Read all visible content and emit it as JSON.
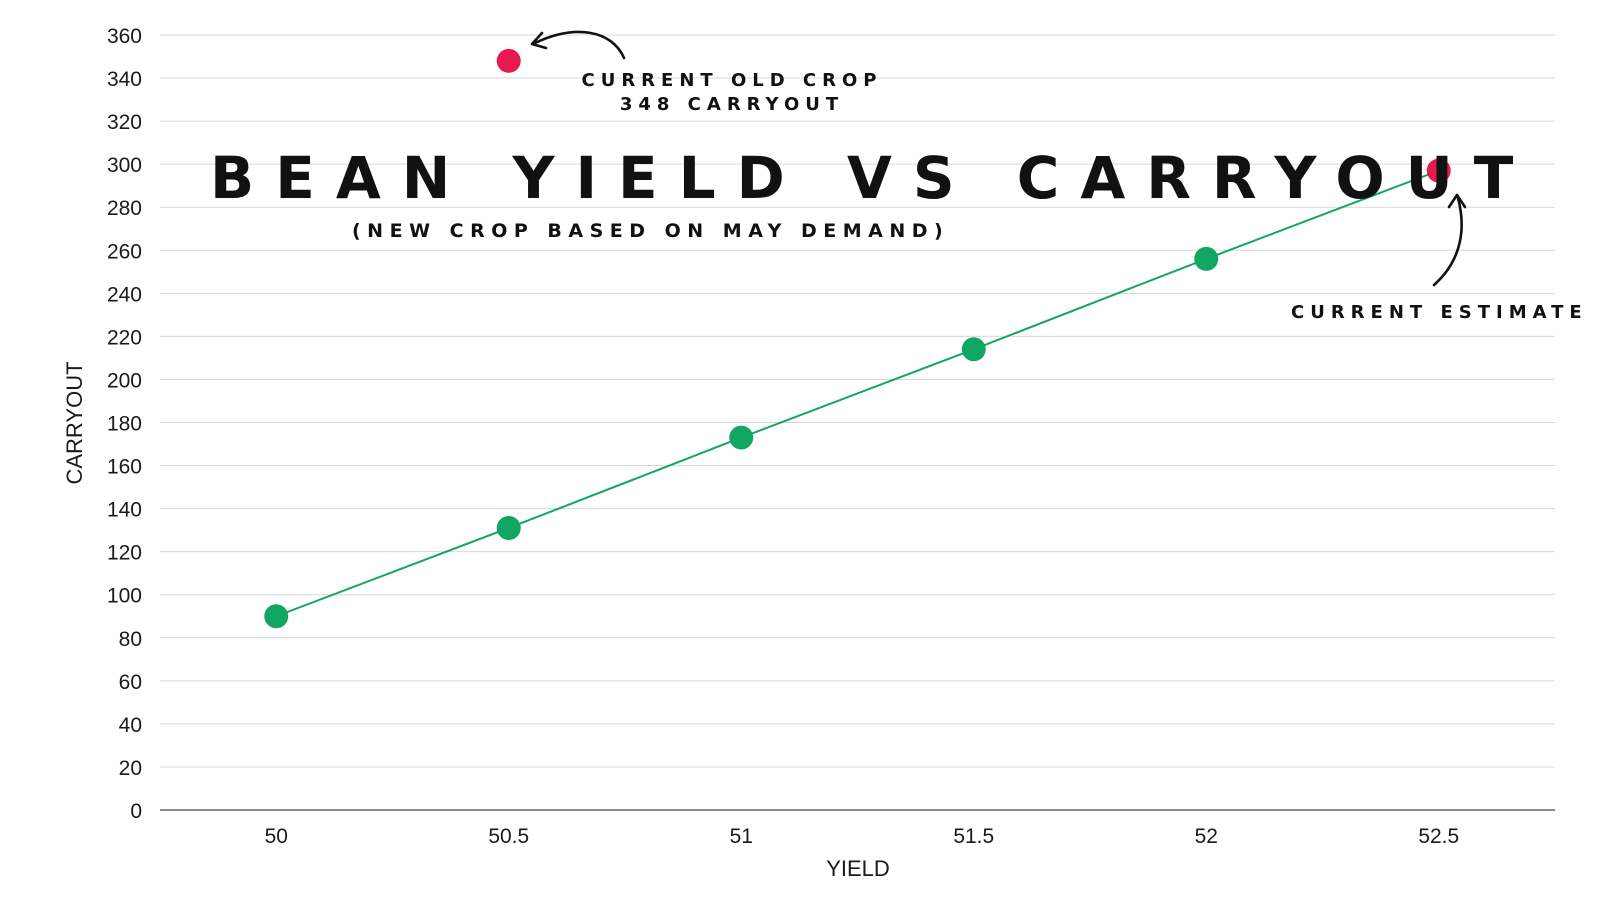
{
  "chart_data": {
    "type": "line",
    "title": "BEAN YIELD VS CARRYOUT",
    "subtitle": "(NEW CROP BASED ON MAY DEMAND)",
    "xlabel": "YIELD",
    "ylabel": "CARRYOUT",
    "categories": [
      "50",
      "50.5",
      "51",
      "51.5",
      "52",
      "52.5"
    ],
    "ylim": [
      0,
      360
    ],
    "ystep": 20,
    "yticks": [
      "0",
      "20",
      "40",
      "60",
      "80",
      "100",
      "120",
      "140",
      "160",
      "180",
      "200",
      "220",
      "240",
      "260",
      "280",
      "300",
      "320",
      "340",
      "360"
    ],
    "grid": true,
    "series": [
      {
        "name": "Carryout",
        "color": "#12a663",
        "points": [
          {
            "x": "50",
            "y": 90
          },
          {
            "x": "50.5",
            "y": 131
          },
          {
            "x": "51",
            "y": 173
          },
          {
            "x": "51.5",
            "y": 214
          },
          {
            "x": "52",
            "y": 256
          }
        ]
      }
    ],
    "highlights": [
      {
        "name": "current-old-crop",
        "x": "50.5",
        "y": 348,
        "color": "#e8194f"
      },
      {
        "name": "current-estimate",
        "x": "52.5",
        "y": 297,
        "color": "#e8194f"
      }
    ],
    "annotations": {
      "old_crop_line1": "CURRENT OLD CROP",
      "old_crop_line2": "348 CARRYOUT",
      "current_estimate": "CURRENT ESTIMATE"
    }
  }
}
